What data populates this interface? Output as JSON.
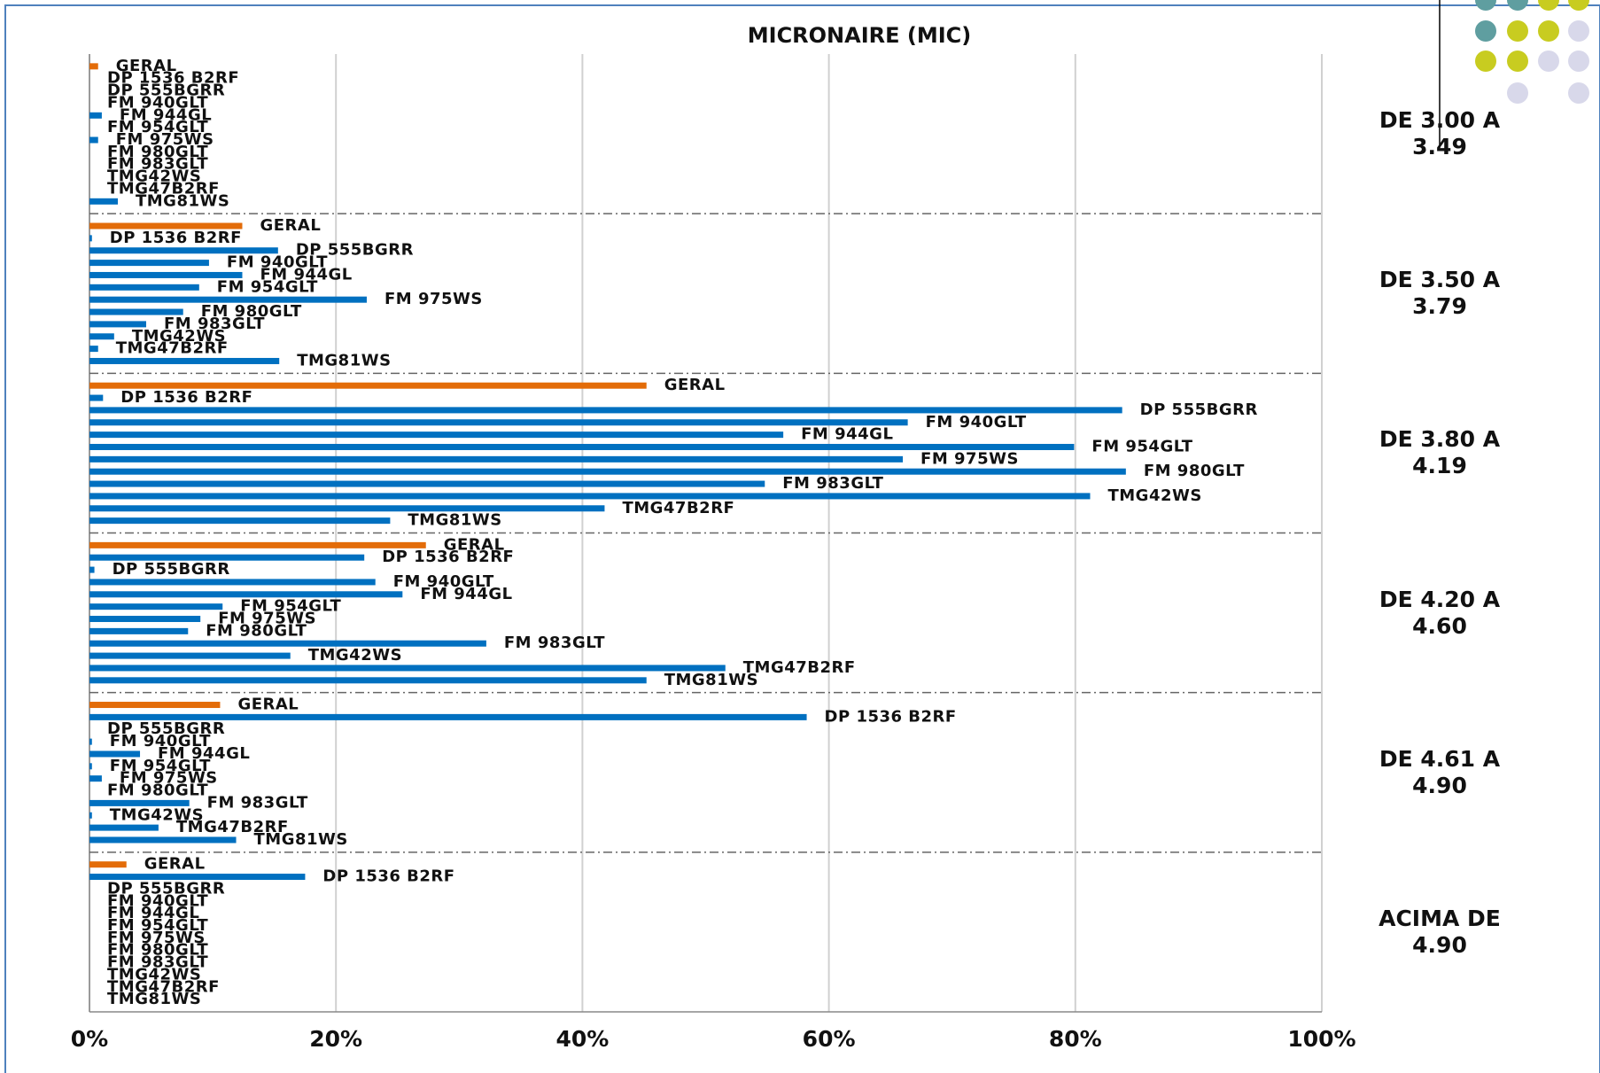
{
  "chart_data": {
    "type": "bar",
    "orientation": "horizontal",
    "title": "MICRONAIRE (MIC)",
    "categories": [
      "DE 3.00 A\n3.49",
      "DE 3.50 A\n3.79",
      "DE 3.80 A\n4.19",
      "DE 4.20 A\n4.60",
      "DE 4.61 A\n4.90",
      "ACIMA DE\n4.90"
    ],
    "series": [
      {
        "name": "GERAL",
        "color": "#e36c09",
        "values": [
          0.7,
          12.4,
          45.2,
          27.3,
          10.6,
          3.0
        ]
      },
      {
        "name": "DP 1536 B2RF",
        "color": "#0070c0",
        "values": [
          0,
          0.2,
          1.1,
          22.3,
          58.2,
          17.5
        ]
      },
      {
        "name": "DP 555BGRR",
        "color": "#0070c0",
        "values": [
          0,
          15.3,
          83.8,
          0.4,
          0,
          0
        ]
      },
      {
        "name": "FM 940GLT",
        "color": "#0070c0",
        "values": [
          0,
          9.7,
          66.4,
          23.2,
          0.2,
          0
        ]
      },
      {
        "name": "FM 944GL",
        "color": "#0070c0",
        "values": [
          1.0,
          12.4,
          56.3,
          25.4,
          4.1,
          0
        ]
      },
      {
        "name": "FM 954GLT",
        "color": "#0070c0",
        "values": [
          0,
          8.9,
          79.9,
          10.8,
          0.2,
          0
        ]
      },
      {
        "name": "FM 975WS",
        "color": "#0070c0",
        "values": [
          0.7,
          22.5,
          66.0,
          9.0,
          1.0,
          0
        ]
      },
      {
        "name": "FM 980GLT",
        "color": "#0070c0",
        "values": [
          0,
          7.6,
          84.1,
          8.0,
          0,
          0
        ]
      },
      {
        "name": "FM 983GLT",
        "color": "#0070c0",
        "values": [
          0,
          4.6,
          54.8,
          32.2,
          8.1,
          0
        ]
      },
      {
        "name": "TMG42WS",
        "color": "#0070c0",
        "values": [
          0,
          2.0,
          81.2,
          16.3,
          0.2,
          0
        ]
      },
      {
        "name": "TMG47B2RF",
        "color": "#0070c0",
        "values": [
          0,
          0.7,
          41.8,
          51.6,
          5.6,
          0
        ]
      },
      {
        "name": "TMG81WS",
        "color": "#0070c0",
        "values": [
          2.3,
          15.4,
          24.4,
          45.2,
          11.9,
          0
        ]
      }
    ],
    "xlim": [
      0,
      100
    ],
    "xticks": [
      {
        "value": 0,
        "label": "0%"
      },
      {
        "value": 20,
        "label": "20%"
      },
      {
        "value": 40,
        "label": "40%"
      },
      {
        "value": 60,
        "label": "60%"
      },
      {
        "value": 80,
        "label": "80%"
      },
      {
        "value": 100,
        "label": "100%"
      }
    ],
    "grid": true
  }
}
